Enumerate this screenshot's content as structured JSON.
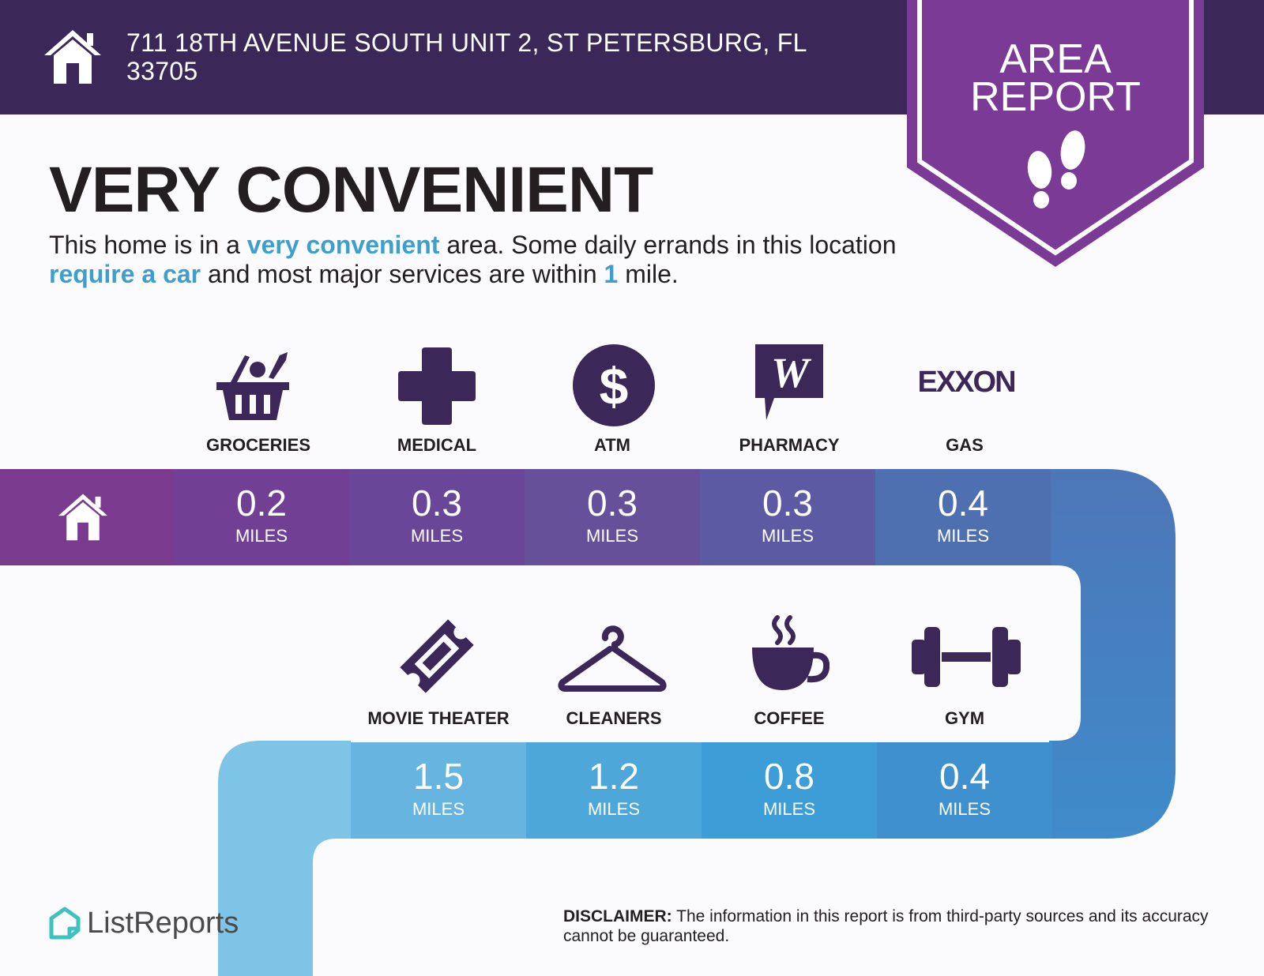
{
  "header": {
    "address_line1": "711 18TH AVENUE SOUTH UNIT 2, ST PETERSBURG, FL",
    "address_line2": "33705",
    "home_icon": "home-icon"
  },
  "badge": {
    "line1": "AREA",
    "line2": "REPORT",
    "icon": "footprints-icon"
  },
  "headline": "VERY CONVENIENT",
  "description": {
    "t1": "This home is in a ",
    "h1": "very convenient",
    "t2": " area. Some daily errands in this location ",
    "h2": "require a car",
    "t3": " and most major services are within ",
    "h3": "1",
    "t4": " mile."
  },
  "row1": [
    {
      "label": "GROCERIES",
      "value": "0.2",
      "unit": "MILES",
      "icon": "grocery-basket-icon"
    },
    {
      "label": "MEDICAL",
      "value": "0.3",
      "unit": "MILES",
      "icon": "medical-cross-icon"
    },
    {
      "label": "ATM",
      "value": "0.3",
      "unit": "MILES",
      "icon": "dollar-icon"
    },
    {
      "label": "PHARMACY",
      "value": "0.3",
      "unit": "MILES",
      "icon": "pharmacy-logo-icon",
      "logo_text": "W"
    },
    {
      "label": "GAS",
      "value": "0.4",
      "unit": "MILES",
      "icon": "gas-logo-icon",
      "logo_text": "EXXON"
    }
  ],
  "row2": [
    {
      "label": "MOVIE THEATER",
      "value": "1.5",
      "unit": "MILES",
      "icon": "ticket-icon"
    },
    {
      "label": "CLEANERS",
      "value": "1.2",
      "unit": "MILES",
      "icon": "hanger-icon"
    },
    {
      "label": "COFFEE",
      "value": "0.8",
      "unit": "MILES",
      "icon": "coffee-cup-icon"
    },
    {
      "label": "GYM",
      "value": "0.4",
      "unit": "MILES",
      "icon": "dumbbell-icon"
    }
  ],
  "footer": {
    "brand": "ListReports",
    "disclaimer_label": "DISCLAIMER:",
    "disclaimer_text": " The information in this report is from third-party sources and its accuracy cannot be guaranteed."
  },
  "colors": {
    "header_bg": "#3b2859",
    "badge": "#7b3a96",
    "icon_dark": "#3b2859",
    "highlight": "#3e9fcb",
    "row1": [
      "#7a3b8f",
      "#713f93",
      "#6a4698",
      "#604f9d",
      "#4f6fae",
      "#4d78b8"
    ],
    "row2": [
      "#5aa7d6",
      "#58a6d9",
      "#4aa0d6",
      "#3f9ad8",
      "#3f8ccb",
      "#3f86c6"
    ]
  }
}
